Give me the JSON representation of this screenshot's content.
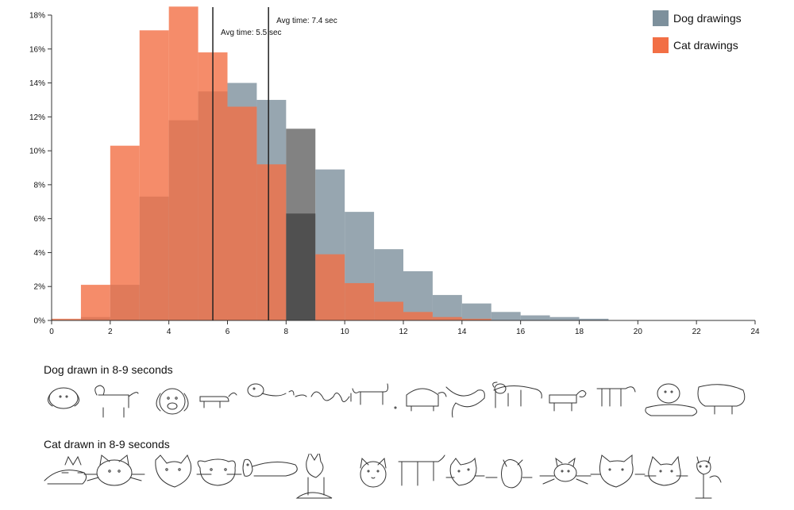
{
  "chart_data": {
    "type": "bar",
    "x": [
      0,
      1,
      2,
      3,
      4,
      5,
      6,
      7,
      8,
      9,
      10,
      11,
      12,
      13,
      14,
      15,
      16,
      17,
      18,
      19
    ],
    "bin_width": 1,
    "series": [
      {
        "name": "Dog drawings",
        "color": "#7d909c",
        "values": [
          0.0,
          0.2,
          2.1,
          7.3,
          11.8,
          13.5,
          14.0,
          13.0,
          11.3,
          8.9,
          6.4,
          4.2,
          2.9,
          1.5,
          1.0,
          0.5,
          0.3,
          0.2,
          0.1,
          0.0
        ]
      },
      {
        "name": "Cat drawings",
        "color": "#f26f45",
        "values": [
          0.1,
          2.1,
          10.3,
          17.1,
          18.5,
          15.8,
          12.6,
          9.2,
          6.3,
          3.9,
          2.2,
          1.1,
          0.5,
          0.2,
          0.1,
          0.0,
          0.0,
          0.0,
          0.0,
          0.0
        ]
      }
    ],
    "xlim": [
      0,
      24
    ],
    "ylim": [
      0,
      18
    ],
    "x_ticks": [
      "0",
      "2",
      "4",
      "6",
      "8",
      "10",
      "12",
      "14",
      "16",
      "18",
      "20",
      "22",
      "24"
    ],
    "y_ticks": [
      "0%",
      "2%",
      "4%",
      "6%",
      "8%",
      "10%",
      "12%",
      "14%",
      "16%",
      "18%"
    ],
    "highlight_bin": [
      8,
      9
    ],
    "avg_lines": [
      {
        "x": 5.5,
        "label": "Avg time: 5.5 sec"
      },
      {
        "x": 7.4,
        "label": "Avg time: 7.4 sec"
      }
    ],
    "legend_position": "top-right",
    "grid": false
  },
  "legend": {
    "dog_label": "Dog drawings",
    "cat_label": "Cat drawings"
  },
  "examples": {
    "dog_title": "Dog drawn in 8-9 seconds",
    "cat_title": "Cat drawn in 8-9 seconds"
  }
}
